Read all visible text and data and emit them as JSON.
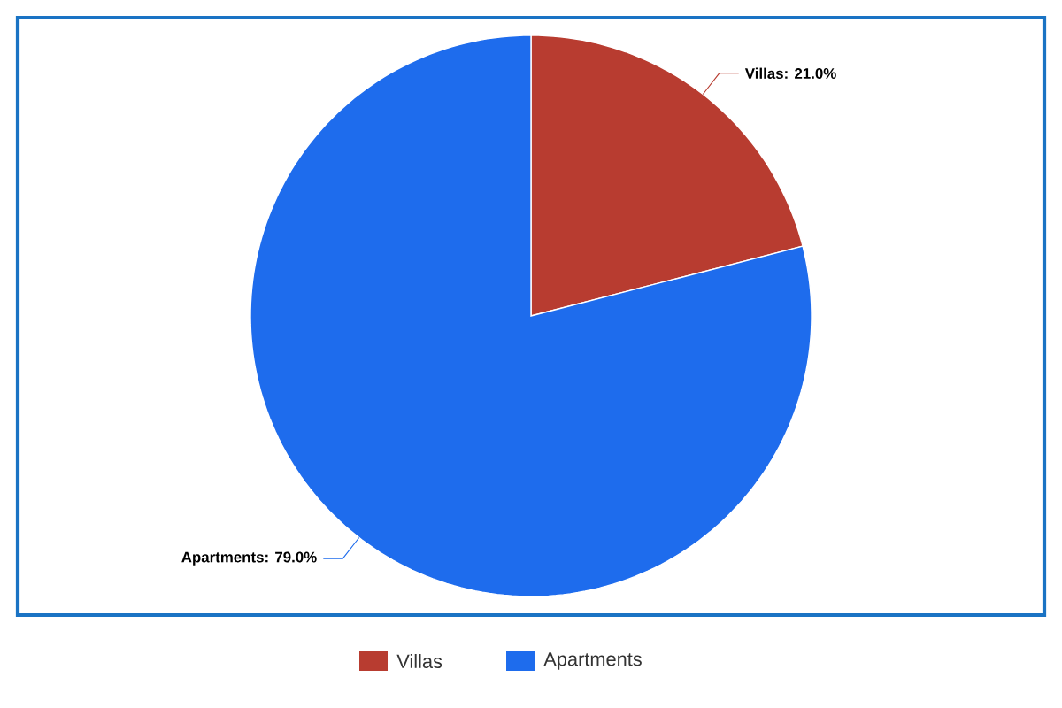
{
  "chart_data": {
    "type": "pie",
    "categories": [
      "Villas",
      "Apartments"
    ],
    "values": [
      21.0,
      79.0
    ],
    "colors": [
      "#b83c30",
      "#1e6ced"
    ],
    "value_labels": [
      "Villas: 21.0%",
      "Apartments: 79.0%"
    ],
    "legend": "bottom"
  }
}
